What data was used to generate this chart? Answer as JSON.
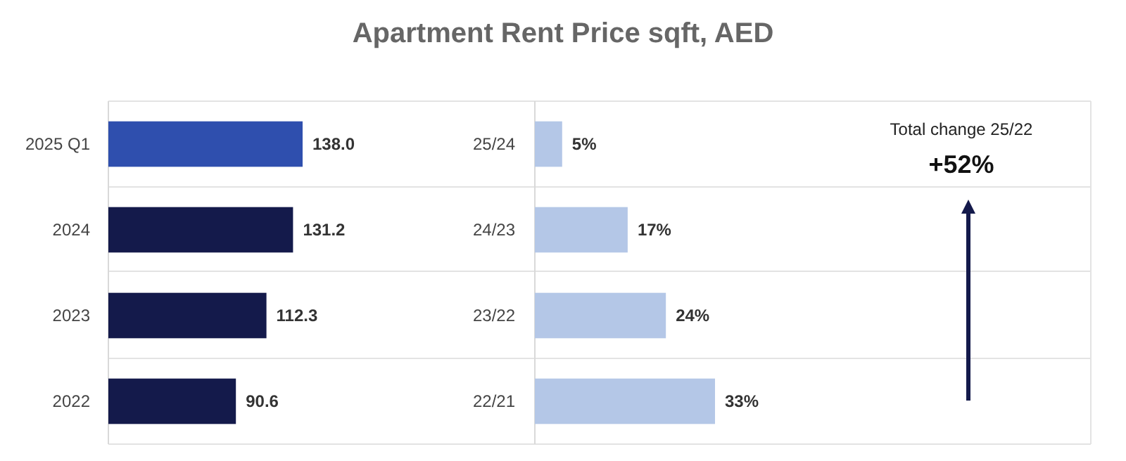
{
  "chart_data": [
    {
      "type": "bar",
      "orientation": "horizontal",
      "categories": [
        "2025 Q1",
        "2024",
        "2023",
        "2022"
      ],
      "values": [
        138.0,
        131.2,
        112.3,
        90.6
      ],
      "colors": [
        "#2f4fae",
        "#141a4b",
        "#141a4b",
        "#141a4b"
      ],
      "value_labels": [
        "138.0",
        "131.2",
        "112.3",
        "90.6"
      ],
      "tick_labels": "y"
    },
    {
      "type": "bar",
      "orientation": "horizontal",
      "title": "Apartment Rent Price sqft, AED",
      "categories": [
        "25/24",
        "24/23",
        "23/22",
        "22/21"
      ],
      "values": [
        5,
        17,
        24,
        33
      ],
      "color": "#b4c7e7",
      "value_labels": [
        "5%",
        "17%",
        "24%",
        "33%"
      ],
      "tick_labels": "y"
    },
    {
      "type": "other",
      "annotations": [
        "Total change 25/22",
        "+52%"
      ]
    }
  ]
}
